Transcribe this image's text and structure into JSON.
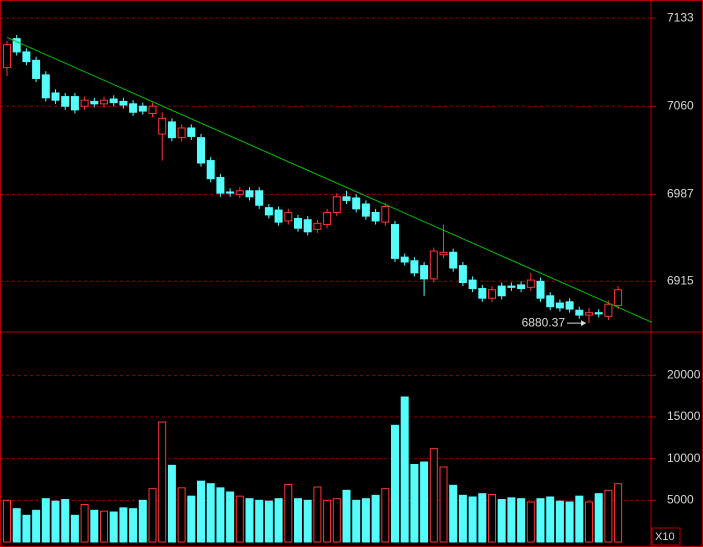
{
  "chart_data": [
    {
      "type": "candlestick",
      "up_color": "#ff3232",
      "down_color": "#54fcfc",
      "open": [
        7092,
        7116,
        7105,
        7098,
        7086,
        7071,
        7068,
        7068,
        7060,
        7064,
        7062,
        7066,
        7064,
        7062,
        7060,
        7054,
        7037,
        7047,
        7034,
        7042,
        7034,
        7015,
        7001,
        6989,
        6987,
        6990,
        6990,
        6976,
        6974,
        6965,
        6967,
        6966,
        6958,
        6962,
        6972,
        6985,
        6984,
        6979,
        6972,
        6964,
        6962,
        6935,
        6932,
        6928,
        6917,
        6937,
        6939,
        6928,
        6916,
        6909,
        6901,
        6911,
        6911,
        6912,
        6910,
        6915,
        6903,
        6897,
        6898,
        6891,
        6887,
        6889,
        6886,
        6895
      ],
      "high": [
        7114,
        7119,
        7108,
        7101,
        7089,
        7074,
        7071,
        7071,
        7068,
        7067,
        7068,
        7069,
        7067,
        7065,
        7063,
        7063,
        7055,
        7050,
        7045,
        7045,
        7037,
        7018,
        7004,
        6992,
        6993,
        6993,
        6993,
        6979,
        6977,
        6975,
        6970,
        6969,
        6966,
        6975,
        6988,
        6990,
        6987,
        6982,
        6975,
        6980,
        6965,
        6938,
        6935,
        6931,
        6943,
        6962,
        6942,
        6931,
        6919,
        6912,
        6911,
        6914,
        6914,
        6915,
        6922,
        6918,
        6906,
        6900,
        6901,
        6894,
        6893,
        6892,
        6899,
        6911
      ],
      "low": [
        7085,
        7102,
        7094,
        7080,
        7064,
        7062,
        7057,
        7054,
        7057,
        7059,
        7059,
        7060,
        7058,
        7052,
        7053,
        7051,
        7015,
        7031,
        7031,
        7032,
        7010,
        6997,
        6985,
        6985,
        6984,
        6982,
        6975,
        6967,
        6961,
        6962,
        6956,
        6953,
        6955,
        6959,
        6969,
        6979,
        6972,
        6966,
        6962,
        6961,
        6931,
        6928,
        6919,
        6903,
        6914,
        6934,
        6923,
        6911,
        6906,
        6898,
        6898,
        6900,
        6907,
        6906,
        6907,
        6898,
        6891,
        6890,
        6889,
        6884,
        6880.37,
        6885,
        6883,
        6892
      ],
      "close": [
        7111,
        7105,
        7097,
        7083,
        7067,
        7065,
        7060,
        7057,
        7065,
        7062,
        7065,
        7063,
        7061,
        7055,
        7056,
        7060,
        7050,
        7034,
        7042,
        7035,
        7013,
        7000,
        6988,
        6988,
        6990,
        6985,
        6978,
        6970,
        6964,
        6972,
        6959,
        6956,
        6963,
        6972,
        6985,
        6982,
        6975,
        6969,
        6965,
        6977,
        6934,
        6931,
        6922,
        6917,
        6940,
        6939,
        6926,
        6914,
        6909,
        6901,
        6908,
        6903,
        6910,
        6909,
        6916,
        6901,
        6894,
        6893,
        6892,
        6887,
        6889,
        6888,
        6896,
        6908
      ],
      "ylim": [
        6873,
        7148
      ],
      "yticks": [
        7133,
        7060,
        6987,
        6915
      ],
      "grid": true,
      "trendline": {
        "x": [
          0,
          66.5
        ],
        "y": [
          7117,
          6881
        ],
        "color": "#00c000"
      },
      "annotation": {
        "text": "6880.37",
        "index": 60
      }
    },
    {
      "type": "bar",
      "values": [
        5000,
        4000,
        3200,
        3800,
        5200,
        4900,
        5100,
        3200,
        4500,
        3800,
        3700,
        3600,
        4100,
        4000,
        5000,
        6400,
        14400,
        9200,
        6500,
        5500,
        7300,
        7000,
        6500,
        6000,
        5500,
        5200,
        5000,
        4900,
        5200,
        6900,
        5200,
        5000,
        6600,
        5000,
        5200,
        6200,
        5000,
        5200,
        5600,
        6400,
        14000,
        17400,
        9300,
        9600,
        11200,
        9000,
        6800,
        5600,
        5400,
        5800,
        5700,
        5100,
        5300,
        5200,
        4800,
        5200,
        5400,
        4900,
        4800,
        5500,
        4800,
        5800,
        6200,
        7000
      ],
      "ylim": [
        0,
        25200
      ],
      "yticks": [
        20000,
        15000,
        10000,
        5000
      ],
      "grid": true,
      "unit_label": "X10"
    }
  ]
}
